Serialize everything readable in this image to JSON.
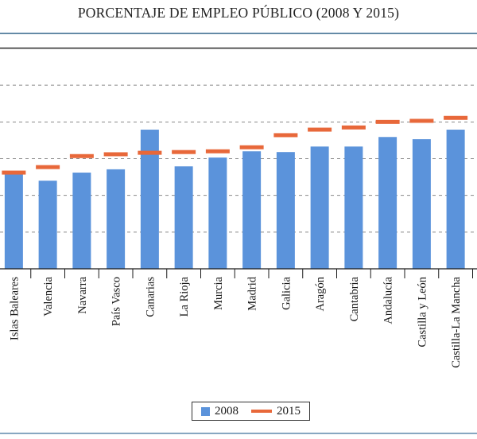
{
  "chart_data": {
    "type": "bar",
    "title": "PORCENTAJE DE EMPLEO PÚBLICO (2008 Y 2015)",
    "xlabel": "",
    "ylabel": "",
    "y_tick_labels_visible": false,
    "y_units_note": "Values in gridline units (no y-axis labels shown)",
    "ylim": [
      0,
      6
    ],
    "y_gridlines": [
      1,
      2,
      3,
      4,
      5
    ],
    "grid": true,
    "legend_position": "bottom-center",
    "categories": [
      "Islas Baleares",
      "Valencia",
      "Navarra",
      "País Vasco",
      "Canarias",
      "La Rioja",
      "Murcia",
      "Madrid",
      "Galicia",
      "Aragón",
      "Cantabria",
      "Andalucía",
      "Castilla y León",
      "Castilla-La Mancha"
    ],
    "series": [
      {
        "name": "2008",
        "type": "bar",
        "color": "#5b93db",
        "values": [
          2.6,
          2.4,
          2.62,
          2.71,
          3.79,
          2.79,
          3.03,
          3.2,
          3.18,
          3.33,
          3.33,
          3.59,
          3.53,
          3.79
        ]
      },
      {
        "name": "2015",
        "type": "marker",
        "color": "#e8683a",
        "values": [
          2.62,
          2.77,
          3.07,
          3.12,
          3.16,
          3.18,
          3.2,
          3.31,
          3.64,
          3.79,
          3.85,
          4.0,
          4.03,
          4.11
        ]
      }
    ]
  },
  "legend": {
    "items": [
      {
        "label": "2008",
        "color": "#5b93db"
      },
      {
        "label": "2015",
        "color": "#e8683a"
      }
    ]
  }
}
